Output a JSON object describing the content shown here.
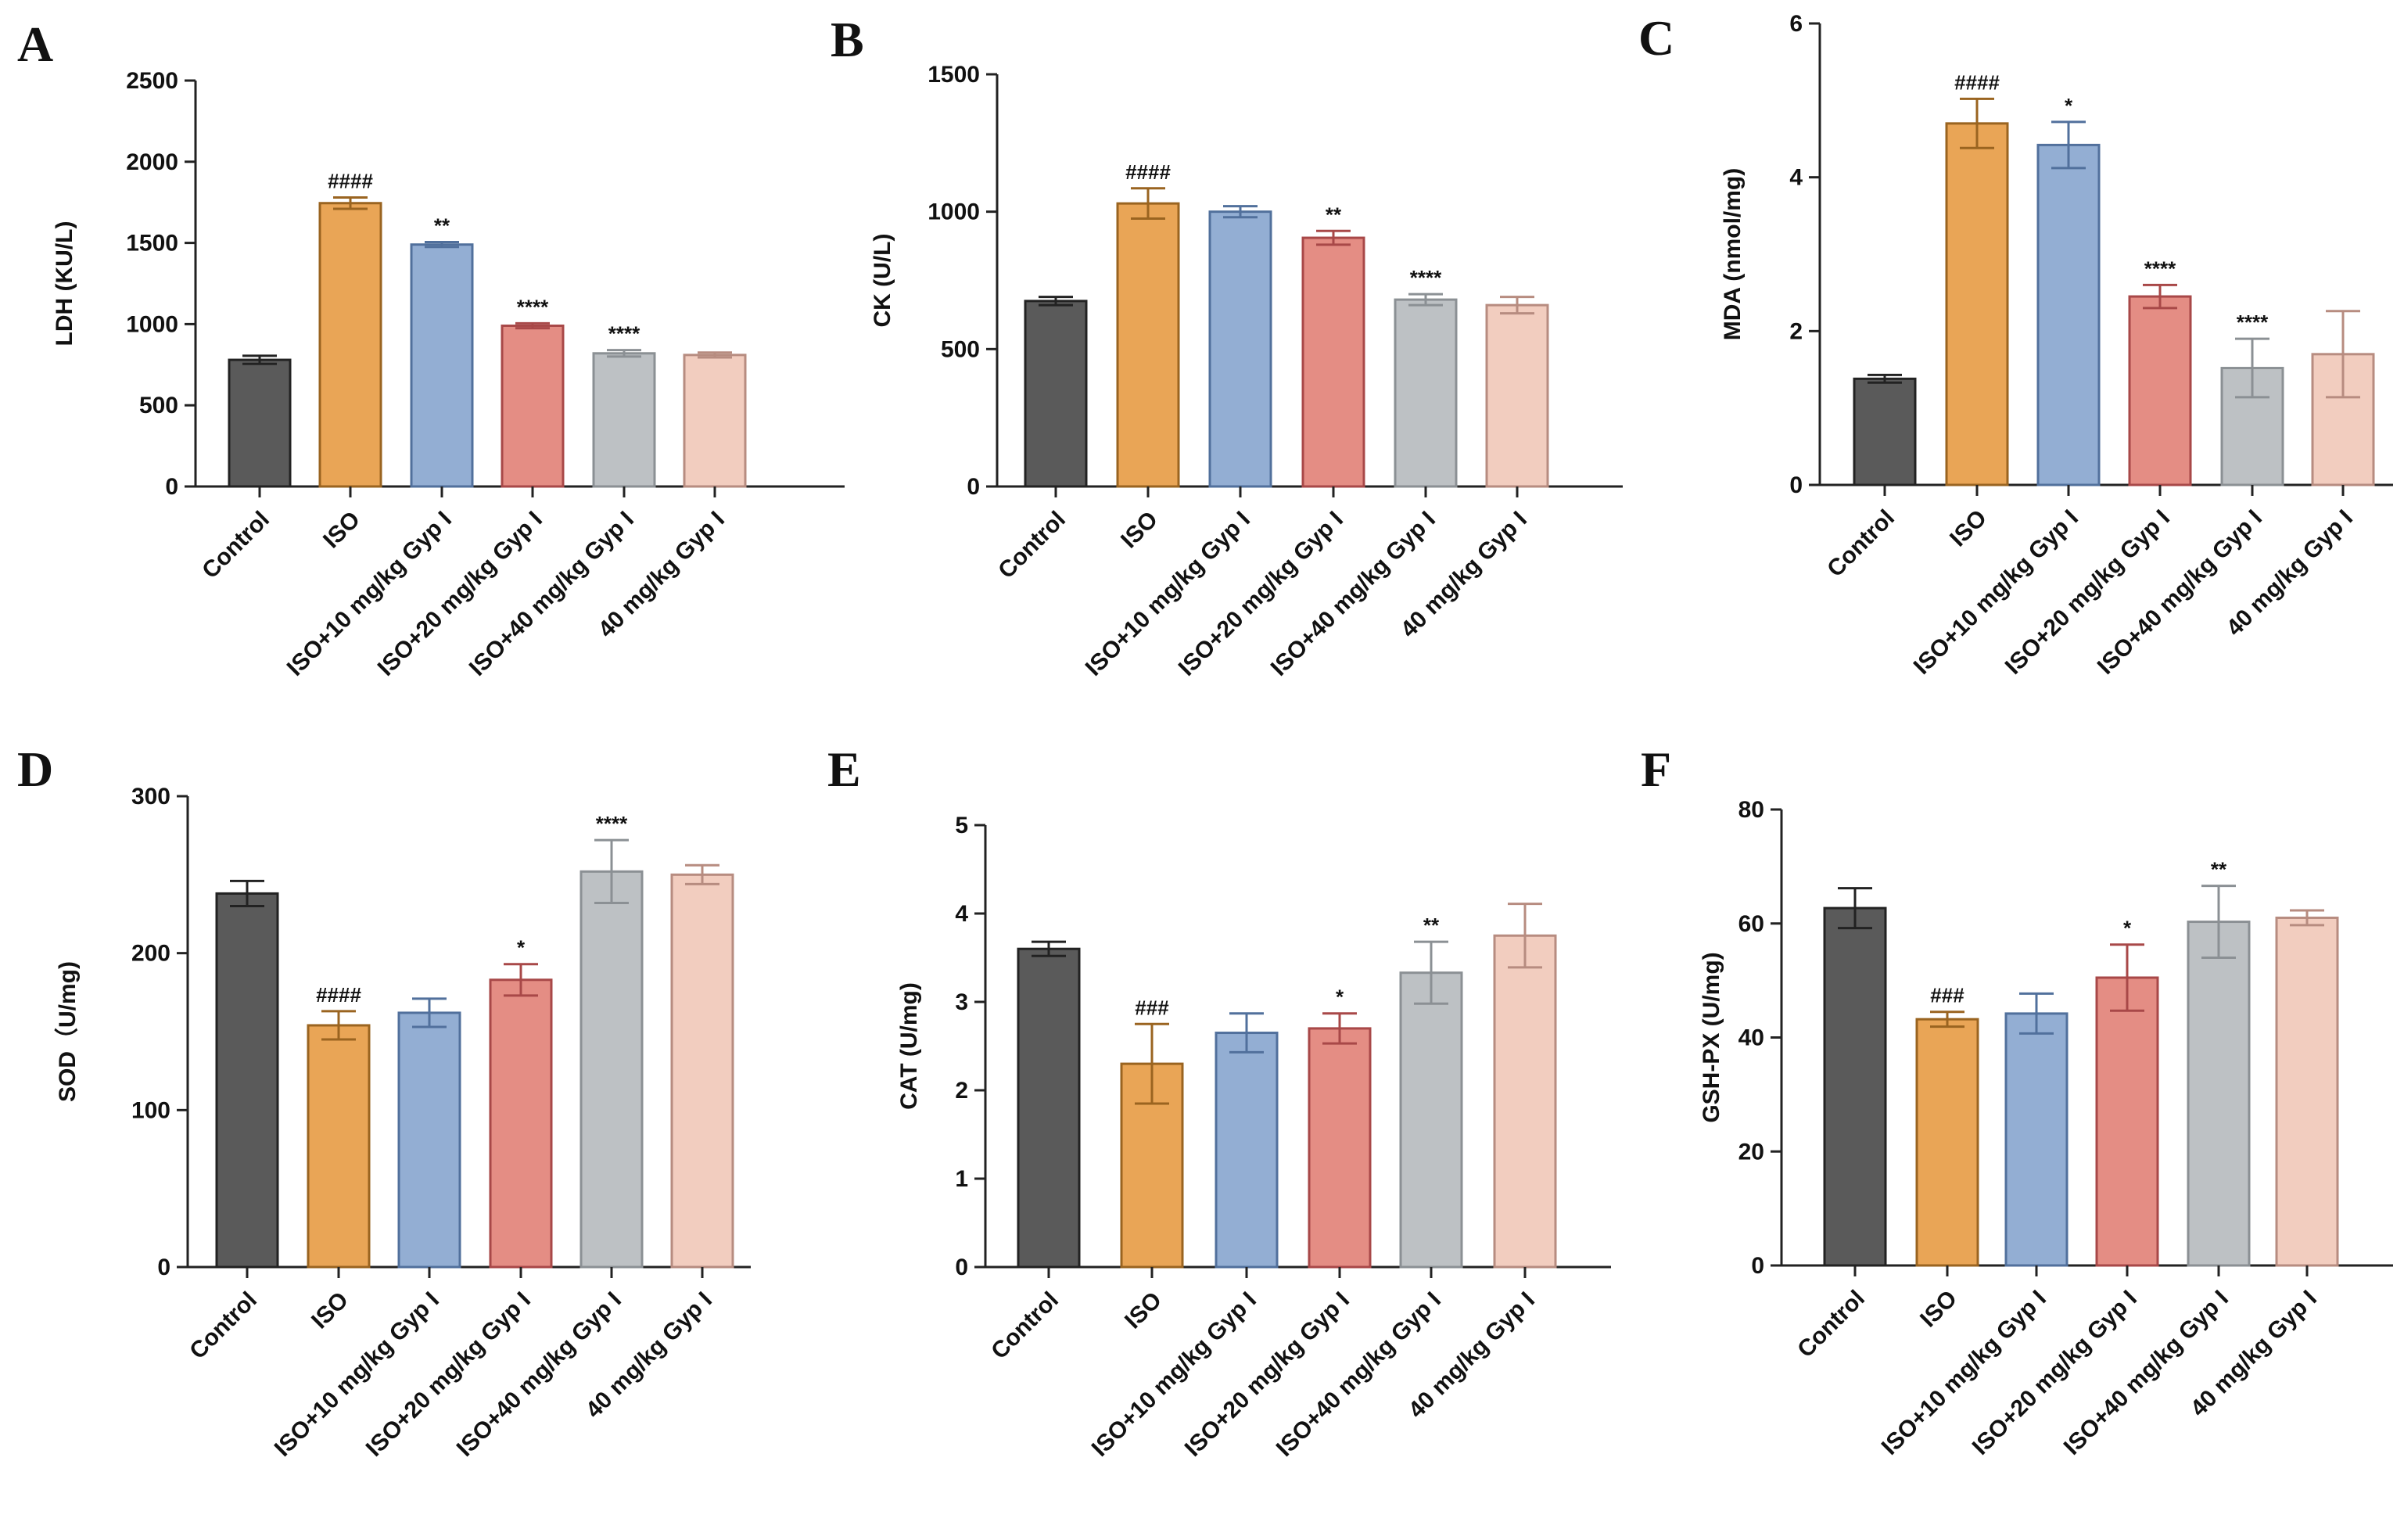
{
  "figure": {
    "categories": [
      "Control",
      "ISO",
      "ISO+10 mg/kg Gyp I",
      "ISO+20 mg/kg Gyp I",
      "ISO+40 mg/kg Gyp I",
      "40 mg/kg Gyp I"
    ],
    "series_colors": {
      "fill": [
        "#5a5a5a",
        "#e9a556",
        "#93aed3",
        "#e48d84",
        "#bdc1c4",
        "#f2cdbf"
      ],
      "stroke": [
        "#222222",
        "#9a6420",
        "#51709c",
        "#a84848",
        "#8b9094",
        "#b78c80"
      ]
    }
  },
  "chart_data": [
    {
      "type": "bar",
      "panel": "A",
      "title": "",
      "ylabel": "LDH (KU/L)",
      "ylim": [
        0,
        2500
      ],
      "yticks": [
        0,
        500,
        1000,
        1500,
        2000,
        2500
      ],
      "categories": [
        "Control",
        "ISO",
        "ISO+10 mg/kg Gyp I",
        "ISO+20 mg/kg Gyp I",
        "ISO+40 mg/kg Gyp I",
        "40 mg/kg Gyp I"
      ],
      "values": [
        780,
        1745,
        1490,
        990,
        820,
        810
      ],
      "errors": [
        25,
        35,
        15,
        15,
        20,
        15
      ],
      "annotations": [
        "",
        "####",
        "**",
        "****",
        "****",
        ""
      ]
    },
    {
      "type": "bar",
      "panel": "B",
      "title": "",
      "ylabel": "CK (U/L)",
      "ylim": [
        0,
        1500
      ],
      "yticks": [
        0,
        500,
        1000,
        1500
      ],
      "categories": [
        "Control",
        "ISO",
        "ISO+10 mg/kg Gyp I",
        "ISO+20 mg/kg Gyp I",
        "ISO+40 mg/kg Gyp I",
        "40 mg/kg Gyp I"
      ],
      "values": [
        675,
        1030,
        1000,
        905,
        680,
        660
      ],
      "errors": [
        15,
        55,
        20,
        25,
        20,
        30
      ],
      "annotations": [
        "",
        "####",
        "",
        "**",
        "****",
        ""
      ]
    },
    {
      "type": "bar",
      "panel": "C",
      "title": "",
      "ylabel": "MDA (nmol/mg)",
      "ylim": [
        0,
        6
      ],
      "yticks": [
        0,
        2,
        4,
        6
      ],
      "categories": [
        "Control",
        "ISO",
        "ISO+10 mg/kg Gyp I",
        "ISO+20 mg/kg Gyp I",
        "ISO+40 mg/kg Gyp I",
        "40 mg/kg Gyp I"
      ],
      "values": [
        1.38,
        4.7,
        4.42,
        2.45,
        1.52,
        1.7
      ],
      "errors": [
        0.05,
        0.32,
        0.3,
        0.15,
        0.38,
        0.56
      ],
      "annotations": [
        "",
        "####",
        "*",
        "****",
        "****",
        ""
      ]
    },
    {
      "type": "bar",
      "panel": "D",
      "title": "",
      "ylabel": "SOD（U/mg)",
      "ylim": [
        0,
        300
      ],
      "yticks": [
        0,
        100,
        200,
        300
      ],
      "categories": [
        "Control",
        "ISO",
        "ISO+10 mg/kg Gyp I",
        "ISO+20 mg/kg Gyp I",
        "ISO+40 mg/kg Gyp I",
        "40 mg/kg Gyp I"
      ],
      "values": [
        238,
        154,
        162,
        183,
        252,
        250
      ],
      "errors": [
        8,
        9,
        9,
        10,
        20,
        6
      ],
      "annotations": [
        "",
        "####",
        "",
        "*",
        "****",
        ""
      ]
    },
    {
      "type": "bar",
      "panel": "E",
      "title": "",
      "ylabel": "CAT (U/mg)",
      "ylim": [
        0,
        5
      ],
      "yticks": [
        0,
        1,
        2,
        3,
        4,
        5
      ],
      "categories": [
        "Control",
        "ISO",
        "ISO+10 mg/kg Gyp I",
        "ISO+20 mg/kg Gyp I",
        "ISO+40 mg/kg Gyp I",
        "40 mg/kg Gyp I"
      ],
      "values": [
        3.6,
        2.3,
        2.65,
        2.7,
        3.33,
        3.75
      ],
      "errors": [
        0.08,
        0.45,
        0.22,
        0.17,
        0.35,
        0.36
      ],
      "annotations": [
        "",
        "###",
        "",
        "*",
        "**",
        ""
      ]
    },
    {
      "type": "bar",
      "panel": "F",
      "title": "",
      "ylabel": "GSH-PX (U/mg)",
      "ylim": [
        0,
        80
      ],
      "yticks": [
        0,
        20,
        40,
        60,
        80
      ],
      "categories": [
        "Control",
        "ISO",
        "ISO+10 mg/kg Gyp I",
        "ISO+20 mg/kg Gyp I",
        "ISO+40 mg/kg Gyp I",
        "40 mg/kg Gyp I"
      ],
      "values": [
        62.7,
        43.2,
        44.2,
        50.5,
        60.3,
        61
      ],
      "errors": [
        3.5,
        1.3,
        3.5,
        5.8,
        6.3,
        1.3
      ],
      "annotations": [
        "",
        "###",
        "",
        "*",
        "**",
        ""
      ]
    }
  ]
}
